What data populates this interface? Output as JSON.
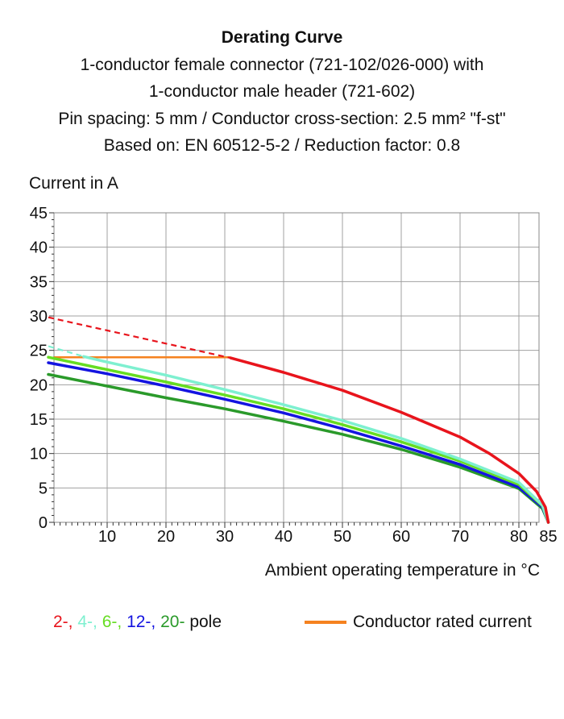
{
  "title_lines": [
    "Derating Curve",
    "1-conductor female connector (721-102/026-000) with",
    "1-conductor male header (721-602)",
    "Pin spacing: 5 mm / Conductor cross-section: 2.5 mm² \"f-st\"",
    "Based on: EN 60512-5-2 / Reduction factor: 0.8"
  ],
  "chart_data": {
    "type": "line",
    "ylabel": "Current in A",
    "xlabel": "Ambient operating temperature in °C",
    "xlim": [
      0,
      90
    ],
    "ylim": [
      0,
      45
    ],
    "x_ticks": [
      10,
      20,
      30,
      40,
      50,
      60,
      70,
      80,
      85
    ],
    "y_ticks": [
      0,
      5,
      10,
      15,
      20,
      25,
      30,
      35,
      40,
      45
    ],
    "grid": true,
    "series": [
      {
        "name": "2-",
        "color": "#e8141c",
        "dashed_points": [
          [
            0,
            29.8
          ],
          [
            31,
            23.9
          ]
        ],
        "points": [
          [
            31,
            23.9
          ],
          [
            40,
            21.8
          ],
          [
            50,
            19.2
          ],
          [
            60,
            16.0
          ],
          [
            70,
            12.4
          ],
          [
            75,
            10.0
          ],
          [
            80,
            7.1
          ],
          [
            83,
            4.5
          ],
          [
            84.5,
            2.2
          ],
          [
            85,
            0
          ]
        ]
      },
      {
        "name": "4-",
        "color": "#7ef0d0",
        "dashed_points": [
          [
            0,
            25.6
          ],
          [
            6,
            24.1
          ]
        ],
        "points": [
          [
            6,
            24.1
          ],
          [
            10,
            23.3
          ],
          [
            20,
            21.4
          ],
          [
            30,
            19.3
          ],
          [
            40,
            17.1
          ],
          [
            50,
            14.8
          ],
          [
            60,
            12.2
          ],
          [
            70,
            9.2
          ],
          [
            80,
            5.8
          ],
          [
            84,
            2.5
          ],
          [
            85,
            0
          ]
        ]
      },
      {
        "name": "6-",
        "color": "#66dd22",
        "points": [
          [
            0,
            24.0
          ],
          [
            10,
            22.2
          ],
          [
            20,
            20.4
          ],
          [
            30,
            18.5
          ],
          [
            40,
            16.5
          ],
          [
            50,
            14.2
          ],
          [
            60,
            11.7
          ],
          [
            70,
            8.9
          ],
          [
            80,
            5.5
          ],
          [
            84,
            2.4
          ],
          [
            85,
            0
          ]
        ]
      },
      {
        "name": "12-",
        "color": "#1414e0",
        "points": [
          [
            0,
            23.2
          ],
          [
            10,
            21.6
          ],
          [
            20,
            19.8
          ],
          [
            30,
            17.9
          ],
          [
            40,
            15.9
          ],
          [
            50,
            13.6
          ],
          [
            60,
            11.1
          ],
          [
            70,
            8.4
          ],
          [
            80,
            5.1
          ],
          [
            84,
            2.2
          ],
          [
            85,
            0
          ]
        ]
      },
      {
        "name": "20-",
        "color": "#2a9a2a",
        "points": [
          [
            0,
            21.5
          ],
          [
            10,
            19.8
          ],
          [
            20,
            18.1
          ],
          [
            30,
            16.5
          ],
          [
            40,
            14.7
          ],
          [
            50,
            12.8
          ],
          [
            60,
            10.6
          ],
          [
            70,
            8.0
          ],
          [
            80,
            4.9
          ],
          [
            84,
            2.0
          ],
          [
            85,
            0
          ]
        ]
      }
    ],
    "rated_current": {
      "label": "Conductor rated current",
      "color": "#f5821f",
      "value": 24,
      "x_range": [
        0,
        31
      ]
    }
  },
  "legend": {
    "poles": [
      "2-,",
      "4-,",
      "6-,",
      "12-,",
      "20-"
    ],
    "suffix": "pole",
    "rated_label": "Conductor rated current"
  }
}
